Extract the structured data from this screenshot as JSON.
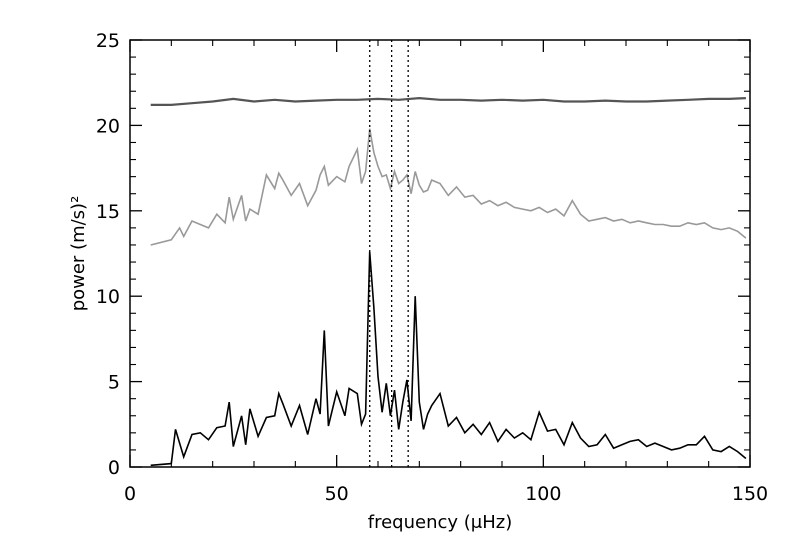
{
  "chart_data": {
    "type": "line",
    "title": "",
    "xlabel": "frequency (μHz)",
    "ylabel": "power (m/s)²",
    "xlim": [
      0,
      150
    ],
    "ylim": [
      0,
      25
    ],
    "xticks": [
      0,
      50,
      100,
      150
    ],
    "yticks": [
      0,
      5,
      10,
      15,
      20,
      25
    ],
    "minor_xtick_step": 10,
    "minor_ytick_step": 1,
    "grid": false,
    "legend": "none",
    "reference_lines_x": [
      58.0,
      63.3,
      67.3
    ],
    "colors": {
      "axis": "#000000",
      "reference": "#000000",
      "series": [
        "#000000",
        "#999999",
        "#555555"
      ]
    },
    "series": [
      {
        "offset": 0,
        "x": [
          5,
          10,
          11,
          13,
          15,
          17,
          19,
          21,
          23,
          24,
          25,
          27,
          28,
          29,
          31,
          33,
          35,
          36,
          37,
          39,
          41,
          43,
          45,
          46,
          47,
          48,
          50,
          52,
          53,
          55,
          56,
          57,
          58,
          59,
          60,
          61,
          62,
          63,
          64,
          65,
          66,
          67,
          68,
          69,
          70,
          71,
          72,
          73,
          75,
          77,
          79,
          81,
          83,
          85,
          87,
          89,
          91,
          93,
          95,
          97,
          99,
          101,
          103,
          105,
          107,
          109,
          111,
          113,
          115,
          117,
          119,
          121,
          123,
          125,
          127,
          129,
          131,
          133,
          135,
          137,
          139,
          141,
          143,
          145,
          147,
          149
        ],
        "y": [
          0.1,
          0.2,
          2.2,
          0.6,
          1.9,
          2.0,
          1.6,
          2.3,
          2.4,
          3.8,
          1.2,
          3.0,
          1.3,
          3.4,
          1.8,
          2.9,
          3.0,
          4.3,
          3.7,
          2.4,
          3.6,
          1.9,
          4.0,
          3.1,
          8.0,
          2.4,
          4.4,
          3.0,
          4.6,
          4.3,
          2.5,
          3.1,
          12.6,
          9.3,
          5.3,
          3.2,
          4.9,
          3.0,
          4.5,
          2.2,
          3.8,
          5.1,
          2.7,
          10.0,
          3.8,
          2.2,
          3.1,
          3.6,
          4.3,
          2.4,
          2.9,
          2.0,
          2.5,
          1.9,
          2.6,
          1.5,
          2.2,
          1.7,
          2.0,
          1.6,
          3.2,
          2.1,
          2.2,
          1.3,
          2.6,
          1.7,
          1.2,
          1.3,
          1.9,
          1.1,
          1.3,
          1.5,
          1.6,
          1.2,
          1.4,
          1.2,
          1.0,
          1.1,
          1.3,
          1.3,
          1.8,
          1.0,
          0.9,
          1.2,
          0.9,
          0.5
        ]
      },
      {
        "offset": 13,
        "x": [
          5,
          10,
          12,
          13,
          15,
          17,
          19,
          21,
          23,
          24,
          25,
          27,
          28,
          29,
          31,
          33,
          35,
          36,
          37,
          39,
          41,
          43,
          45,
          46,
          47,
          48,
          50,
          52,
          53,
          55,
          56,
          57,
          58,
          59,
          60,
          61,
          62,
          63,
          64,
          65,
          66,
          67,
          68,
          69,
          70,
          71,
          72,
          73,
          75,
          77,
          79,
          81,
          83,
          85,
          87,
          89,
          91,
          93,
          95,
          97,
          99,
          101,
          103,
          105,
          107,
          109,
          111,
          113,
          115,
          117,
          119,
          121,
          123,
          125,
          127,
          129,
          131,
          133,
          135,
          137,
          139,
          141,
          143,
          145,
          147,
          149
        ],
        "y": [
          0.0,
          0.3,
          1.0,
          0.5,
          1.4,
          1.2,
          1.0,
          1.8,
          1.3,
          2.8,
          1.5,
          2.9,
          1.4,
          2.1,
          1.8,
          4.1,
          3.3,
          4.2,
          3.8,
          2.9,
          3.6,
          2.3,
          3.2,
          4.1,
          4.6,
          3.5,
          4.0,
          3.7,
          4.6,
          5.6,
          3.6,
          4.3,
          6.8,
          5.4,
          4.6,
          4.0,
          4.1,
          3.3,
          4.3,
          3.6,
          3.8,
          4.1,
          3.0,
          4.3,
          3.5,
          3.1,
          3.2,
          3.8,
          3.6,
          2.9,
          3.4,
          2.8,
          2.9,
          2.4,
          2.6,
          2.3,
          2.5,
          2.2,
          2.1,
          2.0,
          2.2,
          1.9,
          2.1,
          1.7,
          2.6,
          1.8,
          1.4,
          1.5,
          1.6,
          1.4,
          1.5,
          1.3,
          1.4,
          1.3,
          1.2,
          1.2,
          1.1,
          1.1,
          1.3,
          1.2,
          1.3,
          1.0,
          0.9,
          1.0,
          0.8,
          0.4
        ]
      },
      {
        "offset": 21.2,
        "x": [
          5,
          10,
          15,
          20,
          25,
          30,
          35,
          40,
          45,
          50,
          55,
          60,
          65,
          70,
          75,
          80,
          85,
          90,
          95,
          100,
          105,
          110,
          115,
          120,
          125,
          130,
          135,
          140,
          145,
          149
        ],
        "y": [
          0.0,
          0.0,
          0.1,
          0.2,
          0.35,
          0.2,
          0.3,
          0.2,
          0.25,
          0.3,
          0.3,
          0.35,
          0.3,
          0.4,
          0.3,
          0.3,
          0.25,
          0.3,
          0.25,
          0.3,
          0.2,
          0.2,
          0.25,
          0.2,
          0.2,
          0.25,
          0.3,
          0.35,
          0.35,
          0.4
        ]
      }
    ]
  }
}
